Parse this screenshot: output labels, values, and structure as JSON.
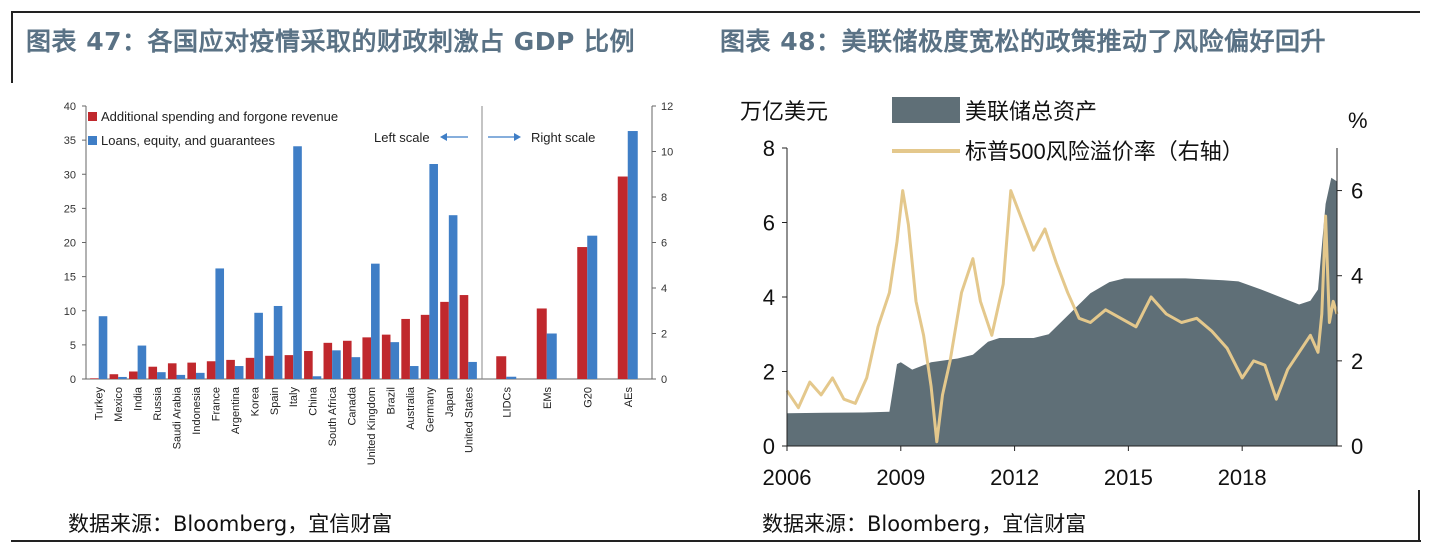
{
  "left": {
    "title": "图表 47：各国应对疫情采取的财政刺激占 GDP 比例",
    "source": "数据来源：Bloomberg，宜信财富"
  },
  "right": {
    "title": "图表 48：美联储极度宽松的政策推动了风险偏好回升",
    "source": "数据来源：Bloomberg，宜信财富"
  },
  "colors": {
    "red": "#c0282d",
    "blue": "#3f7ec6",
    "gray": "#5f6f77",
    "tan": "#e4c88c",
    "title": "#5a7285"
  },
  "chart_data": [
    {
      "type": "bar",
      "legend": [
        "Additional spending and forgone revenue",
        "Loans, equity, and guarantees"
      ],
      "annotations": {
        "left_scale": "Left scale",
        "right_scale": "Right scale"
      },
      "left_axis": {
        "ylim": [
          0,
          40
        ],
        "ticks": [
          0,
          5,
          10,
          15,
          20,
          25,
          30,
          35,
          40
        ]
      },
      "right_axis": {
        "ylim": [
          0,
          12
        ],
        "ticks": [
          0,
          2,
          4,
          6,
          8,
          10,
          12
        ]
      },
      "categories": [
        "Turkey",
        "Mexico",
        "India",
        "Russia",
        "Saudi Arabia",
        "Indonesia",
        "France",
        "Argentina",
        "Korea",
        "Spain",
        "Italy",
        "China",
        "South Africa",
        "Canada",
        "United Kingdom",
        "Brazil",
        "Australia",
        "Germany",
        "Japan",
        "United States"
      ],
      "series": [
        {
          "name": "Additional spending and forgone revenue",
          "values": [
            0.1,
            0.7,
            1.1,
            1.8,
            2.3,
            2.4,
            2.6,
            2.8,
            3.1,
            3.4,
            3.5,
            4.1,
            5.3,
            5.6,
            6.1,
            6.5,
            8.8,
            9.4,
            11.3,
            12.3
          ]
        },
        {
          "name": "Loans, equity, and guarantees",
          "values": [
            9.2,
            0.3,
            4.9,
            1.0,
            0.6,
            0.9,
            16.2,
            1.9,
            9.7,
            10.7,
            34.1,
            0.4,
            4.2,
            3.2,
            16.9,
            5.4,
            1.9,
            31.5,
            24.0,
            2.5
          ]
        }
      ],
      "right_categories": [
        "LIDCs",
        "EMs",
        "G20",
        "AEs"
      ],
      "right_series": [
        {
          "name": "Additional spending and forgone revenue",
          "values": [
            1.0,
            3.1,
            5.8,
            8.9
          ]
        },
        {
          "name": "Loans, equity, and guarantees",
          "values": [
            0.1,
            2.0,
            6.3,
            10.9
          ]
        }
      ]
    },
    {
      "type": "area",
      "ylabel": "万亿美元",
      "y2label": "%",
      "legend": [
        "美联储总资产",
        "标普500风险溢价率（右轴）"
      ],
      "ylim": [
        0,
        8
      ],
      "yticks": [
        0,
        2,
        4,
        6,
        8
      ],
      "y2lim": [
        0,
        7
      ],
      "y2ticks": [
        0,
        2,
        4,
        6
      ],
      "xlim": [
        2006.0,
        2020.5
      ],
      "xticks": [
        2006,
        2009,
        2012,
        2015,
        2018
      ],
      "series": [
        {
          "name": "美联储总资产",
          "x": [
            2006.0,
            2007.0,
            2008.0,
            2008.7,
            2008.9,
            2009.0,
            2009.3,
            2009.8,
            2010.5,
            2010.9,
            2011.3,
            2011.6,
            2012.5,
            2012.9,
            2013.5,
            2014.0,
            2014.5,
            2014.9,
            2015.5,
            2016.5,
            2017.5,
            2017.9,
            2018.5,
            2019.0,
            2019.5,
            2019.8,
            2020.0,
            2020.2,
            2020.35,
            2020.5
          ],
          "values": [
            0.88,
            0.89,
            0.9,
            0.92,
            2.2,
            2.25,
            2.05,
            2.25,
            2.35,
            2.45,
            2.8,
            2.9,
            2.9,
            3.0,
            3.6,
            4.1,
            4.4,
            4.5,
            4.5,
            4.5,
            4.45,
            4.42,
            4.2,
            4.0,
            3.8,
            3.9,
            4.2,
            6.5,
            7.2,
            7.1
          ]
        },
        {
          "name": "标普500风险溢价率（右轴）",
          "x": [
            2006.0,
            2006.3,
            2006.6,
            2006.9,
            2007.2,
            2007.5,
            2007.8,
            2008.1,
            2008.4,
            2008.7,
            2008.9,
            2009.05,
            2009.2,
            2009.4,
            2009.6,
            2009.8,
            2009.95,
            2010.1,
            2010.3,
            2010.6,
            2010.9,
            2011.1,
            2011.4,
            2011.7,
            2011.9,
            2012.2,
            2012.5,
            2012.8,
            2013.1,
            2013.4,
            2013.7,
            2014.0,
            2014.4,
            2014.8,
            2015.2,
            2015.6,
            2016.0,
            2016.4,
            2016.8,
            2017.2,
            2017.6,
            2018.0,
            2018.3,
            2018.6,
            2018.9,
            2019.2,
            2019.5,
            2019.8,
            2020.0,
            2020.1,
            2020.2,
            2020.3,
            2020.4,
            2020.5
          ],
          "values": [
            1.3,
            0.9,
            1.5,
            1.2,
            1.6,
            1.1,
            1.0,
            1.6,
            2.8,
            3.6,
            4.8,
            6.0,
            5.2,
            3.4,
            2.6,
            1.4,
            0.1,
            1.2,
            2.0,
            3.6,
            4.4,
            3.4,
            2.6,
            3.8,
            6.0,
            5.3,
            4.6,
            5.1,
            4.3,
            3.6,
            3.0,
            2.9,
            3.2,
            3.0,
            2.8,
            3.5,
            3.1,
            2.9,
            3.0,
            2.7,
            2.3,
            1.6,
            2.0,
            1.9,
            1.1,
            1.8,
            2.2,
            2.6,
            2.2,
            3.1,
            5.4,
            2.9,
            3.4,
            3.1
          ]
        }
      ]
    }
  ]
}
